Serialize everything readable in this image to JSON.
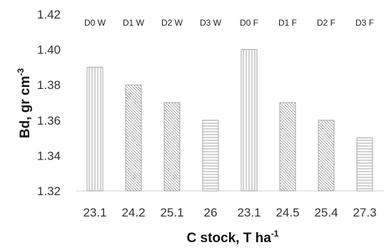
{
  "chart_data": {
    "type": "bar",
    "categories": [
      "23.1",
      "24.2",
      "25.1",
      "26",
      "23.1",
      "24.5",
      "25.4",
      "27.3"
    ],
    "bar_labels": [
      "D0 W",
      "D1 W",
      "D2 W",
      "D3 W",
      "D0 F",
      "D1 F",
      "D2 F",
      "D3 F"
    ],
    "values": [
      1.39,
      1.38,
      1.37,
      1.36,
      1.4,
      1.37,
      1.36,
      1.35
    ],
    "patterns": [
      "vertical",
      "diagonal",
      "diagonal",
      "horizontal",
      "vertical",
      "diagonal",
      "diagonal",
      "horizontal"
    ],
    "ylim": [
      1.32,
      1.42
    ],
    "yticks": [
      "1.32",
      "1.34",
      "1.36",
      "1.38",
      "1.40",
      "1.42"
    ],
    "xlabel": {
      "text": "C stock, T ha",
      "sup": "-1"
    },
    "ylabel": {
      "text": "Bd, gr cm",
      "sup": "-3"
    },
    "grid": false,
    "colors": {
      "bar_fill": "#ffffff",
      "bar_stroke": "#a6a6a6",
      "hatch": "#9a9a9a",
      "axis": "#d0d0d0"
    }
  }
}
